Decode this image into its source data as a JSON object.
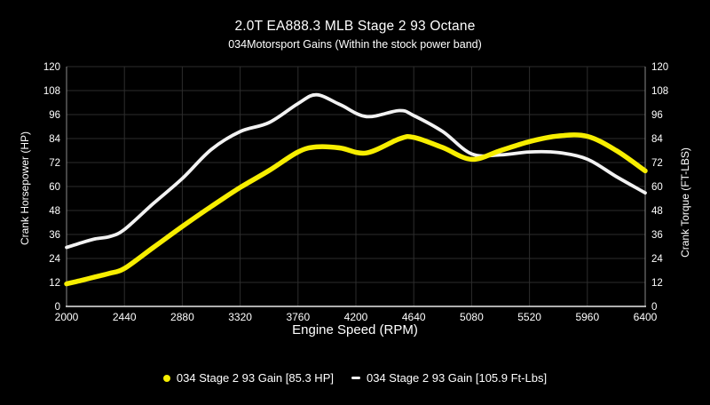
{
  "header": {
    "title": "2.0T EA888.3 MLB Stage 2 93 Octane",
    "subtitle": "034Motorsport Gains (Within the stock power band)"
  },
  "colors": {
    "background": "#000000",
    "text": "#ffffff",
    "grid": "#2d2d2d",
    "side_axis": "#8a8a8a",
    "baseline": "#e8e8e8",
    "hp_series": "#f7ee00",
    "torque_series": "#f2f2f2"
  },
  "legend": {
    "items": [
      {
        "label": "034 Stage 2 93 Gain [85.3 HP]",
        "marker": "dot",
        "color": "#f7ee00"
      },
      {
        "label": "034 Stage 2 93 Gain [105.9 Ft-Lbs]",
        "marker": "dash",
        "color": "#f2f2f2"
      }
    ]
  },
  "chart_data": {
    "type": "line",
    "title": "2.0T EA888.3 MLB Stage 2 93 Octane",
    "subtitle": "034Motorsport Gains (Within the stock power band)",
    "xlabel": "Engine Speed (RPM)",
    "ylabel_left": "Crank Horsepower (HP)",
    "ylabel_right": "Crank Torque (FT-LBS)",
    "xlim": [
      2000,
      6400
    ],
    "ylim": [
      0,
      120
    ],
    "x_ticks": [
      2000,
      2440,
      2880,
      3320,
      3760,
      4200,
      4640,
      5080,
      5520,
      5960,
      6400
    ],
    "y_ticks": [
      0,
      12,
      24,
      36,
      48,
      60,
      72,
      84,
      96,
      108,
      120
    ],
    "grid": true,
    "legend_position": "bottom",
    "x": [
      2000,
      2110,
      2220,
      2330,
      2440,
      2660,
      2880,
      3100,
      3320,
      3540,
      3760,
      3900,
      4080,
      4280,
      4530,
      4640,
      4860,
      5080,
      5300,
      5520,
      5740,
      5960,
      6180,
      6400
    ],
    "series": [
      {
        "name": "034 Stage 2 93 Gain [85.3 HP]",
        "unit": "HP",
        "axis": "left",
        "color": "#f7ee00",
        "peak_label": "85.3 HP",
        "stroke_width": 5.5,
        "values": [
          11.3,
          13.0,
          14.8,
          16.6,
          19.0,
          29.5,
          40.0,
          50.0,
          59.5,
          68.0,
          77.3,
          79.8,
          79.3,
          76.8,
          83.8,
          84.6,
          79.5,
          73.6,
          78.0,
          82.5,
          85.3,
          85.1,
          78.0,
          67.8
        ]
      },
      {
        "name": "034 Stage 2 93 Gain [105.9 Ft-Lbs]",
        "unit": "Ft-Lbs",
        "axis": "right",
        "color": "#f2f2f2",
        "peak_label": "105.9 Ft-Lbs",
        "stroke_width": 3.8,
        "values": [
          29.5,
          31.8,
          33.8,
          35.0,
          38.5,
          51.5,
          64.0,
          78.5,
          87.5,
          92.0,
          101.5,
          105.9,
          101.0,
          95.0,
          98.0,
          95.5,
          87.5,
          76.3,
          75.8,
          77.3,
          77.0,
          73.7,
          65.0,
          56.8
        ]
      }
    ]
  }
}
